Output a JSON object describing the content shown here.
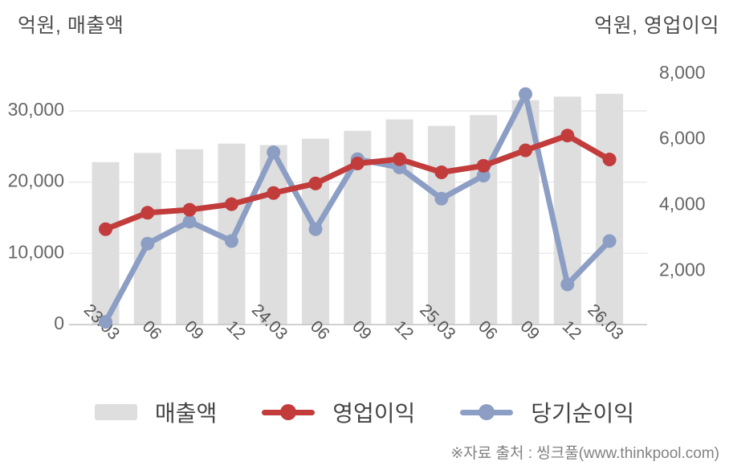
{
  "chart_data": {
    "type": "bar",
    "subtype": "combo-bar-line-dual-axis",
    "categories": [
      "23.03",
      "06",
      "09",
      "12",
      "24.03",
      "06",
      "09",
      "12",
      "25.03",
      "06",
      "09",
      "12",
      "26.03"
    ],
    "series": [
      {
        "name": "매출액",
        "type": "bar",
        "axis": "left",
        "color": "#dedede",
        "values": [
          22800,
          24100,
          24600,
          25400,
          25200,
          26100,
          27200,
          28800,
          27900,
          29400,
          31500,
          32000,
          32400
        ]
      },
      {
        "name": "영업이익",
        "type": "line",
        "axis": "right",
        "color": "#c23c3c",
        "values": [
          3270,
          3770,
          3860,
          4030,
          4370,
          4660,
          5270,
          5400,
          5000,
          5200,
          5670,
          6120,
          5390
        ]
      },
      {
        "name": "당기순이익",
        "type": "line",
        "axis": "right",
        "color": "#8c9ec4",
        "values": [
          450,
          2830,
          3500,
          2910,
          5610,
          3270,
          5400,
          5150,
          4200,
          4900,
          7380,
          1590,
          2910
        ]
      }
    ],
    "left_axis": {
      "title": "억원, 매출액",
      "ticks": [
        0,
        10000,
        20000,
        30000
      ],
      "tick_labels": [
        "0",
        "10,000",
        "20,000",
        "30,000"
      ],
      "range": [
        0,
        33500
      ]
    },
    "right_axis": {
      "title": "억원, 영업이익",
      "ticks": [
        2000,
        4000,
        6000,
        8000
      ],
      "tick_labels": [
        "2,000",
        "4,000",
        "6,000",
        "8,000"
      ],
      "range": [
        350,
        8350
      ]
    },
    "legend_position": "bottom",
    "grid": true
  },
  "footer": {
    "source_note": "※자료 출처 : 씽크풀(www.thinkpool.com)"
  }
}
